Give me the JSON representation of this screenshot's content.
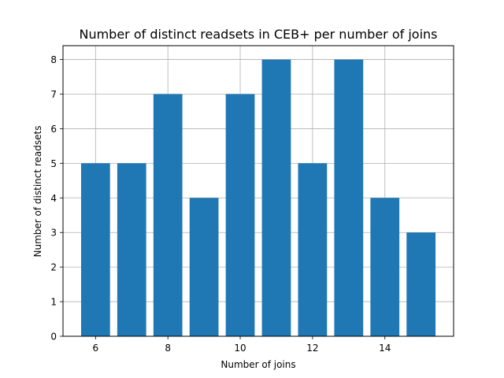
{
  "chart_data": {
    "type": "bar",
    "title": "Number of distinct readsets in CEB+ per number of joins",
    "xlabel": "Number of joins",
    "ylabel": "Number of distinct readsets",
    "x": [
      6,
      7,
      8,
      9,
      10,
      11,
      12,
      13,
      14,
      15
    ],
    "values": [
      5,
      5,
      7,
      4,
      7,
      8,
      5,
      8,
      4,
      3
    ],
    "xlim": [
      5.1,
      15.9
    ],
    "ylim": [
      0,
      8.4
    ],
    "xticks": [
      6,
      8,
      10,
      12,
      14
    ],
    "yticks": [
      0,
      1,
      2,
      3,
      4,
      5,
      6,
      7,
      8
    ],
    "bar_width": 0.8,
    "grid": true,
    "bar_color": "#1f77b4",
    "grid_color": "#b0b0b0"
  }
}
